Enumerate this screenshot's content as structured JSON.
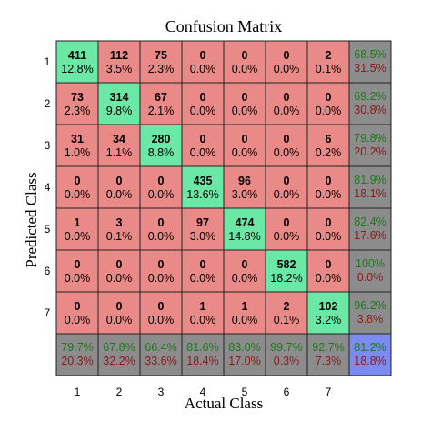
{
  "chart_data": {
    "type": "heatmap",
    "title": "Confusion Matrix",
    "xlabel": "Actual Class",
    "ylabel": "Predicted Class",
    "x_ticks": [
      "1",
      "2",
      "3",
      "4",
      "5",
      "6",
      "7"
    ],
    "y_ticks": [
      "1",
      "2",
      "3",
      "4",
      "5",
      "6",
      "7"
    ],
    "cells": [
      [
        {
          "count": "411",
          "pct": "12.8%"
        },
        {
          "count": "112",
          "pct": "3.5%"
        },
        {
          "count": "75",
          "pct": "2.3%"
        },
        {
          "count": "0",
          "pct": "0.0%"
        },
        {
          "count": "0",
          "pct": "0.0%"
        },
        {
          "count": "0",
          "pct": "0.0%"
        },
        {
          "count": "2",
          "pct": "0.1%"
        }
      ],
      [
        {
          "count": "73",
          "pct": "2.3%"
        },
        {
          "count": "314",
          "pct": "9.8%"
        },
        {
          "count": "67",
          "pct": "2.1%"
        },
        {
          "count": "0",
          "pct": "0.0%"
        },
        {
          "count": "0",
          "pct": "0.0%"
        },
        {
          "count": "0",
          "pct": "0.0%"
        },
        {
          "count": "0",
          "pct": "0.0%"
        }
      ],
      [
        {
          "count": "31",
          "pct": "1.0%"
        },
        {
          "count": "34",
          "pct": "1.1%"
        },
        {
          "count": "280",
          "pct": "8.8%"
        },
        {
          "count": "0",
          "pct": "0.0%"
        },
        {
          "count": "0",
          "pct": "0.0%"
        },
        {
          "count": "0",
          "pct": "0.0%"
        },
        {
          "count": "6",
          "pct": "0.2%"
        }
      ],
      [
        {
          "count": "0",
          "pct": "0.0%"
        },
        {
          "count": "0",
          "pct": "0.0%"
        },
        {
          "count": "0",
          "pct": "0.0%"
        },
        {
          "count": "435",
          "pct": "13.6%"
        },
        {
          "count": "96",
          "pct": "3.0%"
        },
        {
          "count": "0",
          "pct": "0.0%"
        },
        {
          "count": "0",
          "pct": "0.0%"
        }
      ],
      [
        {
          "count": "1",
          "pct": "0.0%"
        },
        {
          "count": "3",
          "pct": "0.1%"
        },
        {
          "count": "0",
          "pct": "0.0%"
        },
        {
          "count": "97",
          "pct": "3.0%"
        },
        {
          "count": "474",
          "pct": "14.8%"
        },
        {
          "count": "0",
          "pct": "0.0%"
        },
        {
          "count": "0",
          "pct": "0.0%"
        }
      ],
      [
        {
          "count": "0",
          "pct": "0.0%"
        },
        {
          "count": "0",
          "pct": "0.0%"
        },
        {
          "count": "0",
          "pct": "0.0%"
        },
        {
          "count": "0",
          "pct": "0.0%"
        },
        {
          "count": "0",
          "pct": "0.0%"
        },
        {
          "count": "582",
          "pct": "18.2%"
        },
        {
          "count": "0",
          "pct": "0.0%"
        }
      ],
      [
        {
          "count": "0",
          "pct": "0.0%"
        },
        {
          "count": "0",
          "pct": "0.0%"
        },
        {
          "count": "0",
          "pct": "0.0%"
        },
        {
          "count": "1",
          "pct": "0.0%"
        },
        {
          "count": "1",
          "pct": "0.0%"
        },
        {
          "count": "2",
          "pct": "0.1%"
        },
        {
          "count": "102",
          "pct": "3.2%"
        }
      ]
    ],
    "row_summary": [
      {
        "correct": "68.5%",
        "wrong": "31.5%"
      },
      {
        "correct": "69.2%",
        "wrong": "30.8%"
      },
      {
        "correct": "79.8%",
        "wrong": "20.2%"
      },
      {
        "correct": "81.9%",
        "wrong": "18.1%"
      },
      {
        "correct": "82.4%",
        "wrong": "17.6%"
      },
      {
        "correct": "100%",
        "wrong": "0.0%"
      },
      {
        "correct": "96.2%",
        "wrong": "3.8%"
      }
    ],
    "col_summary": [
      {
        "correct": "79.7%",
        "wrong": "20.3%"
      },
      {
        "correct": "67.8%",
        "wrong": "32.2%"
      },
      {
        "correct": "66.4%",
        "wrong": "33.6%"
      },
      {
        "correct": "81.6%",
        "wrong": "18.4%"
      },
      {
        "correct": "83.0%",
        "wrong": "17.0%"
      },
      {
        "correct": "99.7%",
        "wrong": "0.3%"
      },
      {
        "correct": "92.7%",
        "wrong": "7.3%"
      }
    ],
    "overall": {
      "correct": "81.2%",
      "wrong": "18.8%"
    },
    "colors": {
      "diagonal": "#6ce8a6",
      "off_diagonal": "#ea8a88",
      "summary": "#8c8c8c",
      "overall": "#7a8cf0",
      "correct_text": "#1a7a1a",
      "wrong_text": "#8c1a1a",
      "overall_correct_text": "#1a7a1a",
      "overall_wrong_text": "#8c1a1a",
      "border": "#222222"
    }
  }
}
